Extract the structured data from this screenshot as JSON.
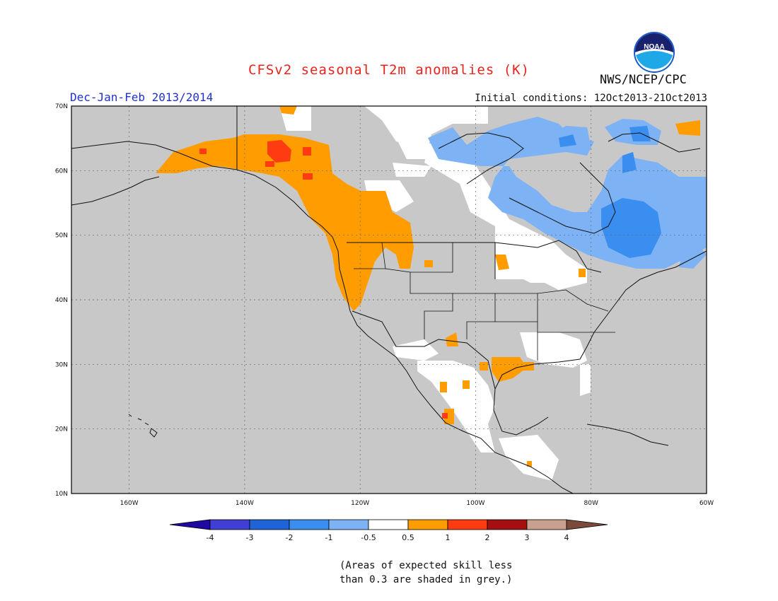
{
  "header": {
    "title": "CFSv2 seasonal T2m anomalies (K)",
    "period": "Dec-Jan-Feb 2013/2014",
    "initial_conditions": "Initial conditions: 12Oct2013-21Oct2013",
    "agency": "NWS/NCEP/CPC",
    "logo_text": "NOAA"
  },
  "map": {
    "lat_labels": [
      "70N",
      "60N",
      "50N",
      "40N",
      "30N",
      "20N",
      "10N"
    ],
    "lon_labels": [
      "160W",
      "140W",
      "120W",
      "100W",
      "80W",
      "60W"
    ],
    "colors": {
      "grey": "#c8c8c8",
      "white": "#ffffff",
      "orange": "#ff9c00",
      "red": "#ff3b11",
      "light_blue": "#7db3f5",
      "medium_blue": "#3a8ef0",
      "coast": "#111111"
    }
  },
  "colorbar": {
    "labels": [
      "-4",
      "-3",
      "-2",
      "-1",
      "-0.5",
      "0.5",
      "1",
      "2",
      "3",
      "4"
    ],
    "colors": [
      "#1e0aa0",
      "#3f3fd6",
      "#1e64d8",
      "#3a8ef0",
      "#7db3f5",
      "#ffffff",
      "#ff9c00",
      "#ff3b11",
      "#a50f0f",
      "#c8a090",
      "#7a4a3a"
    ]
  },
  "note": {
    "line1": "(Areas of expected skill less",
    "line2": "than 0.3 are shaded in grey.)"
  }
}
